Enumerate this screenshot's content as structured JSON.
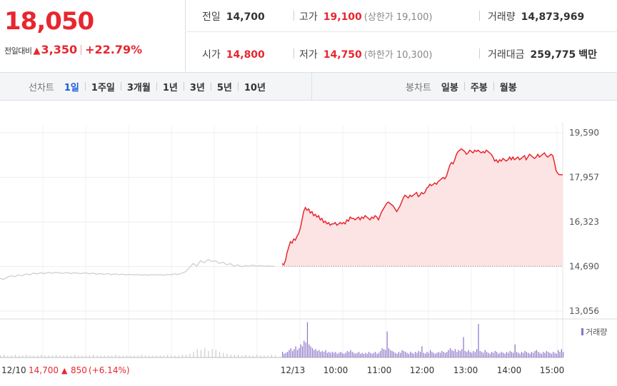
{
  "summary": {
    "price": "18,050",
    "change_label": "전일대비",
    "change_arrow": "▲",
    "change_amount": "3,350",
    "change_rate": "+22.79%"
  },
  "stats": {
    "prev_close": {
      "label": "전일",
      "value": "14,700"
    },
    "high": {
      "label": "고가",
      "value": "19,100",
      "sub": "(상한가 19,100)"
    },
    "volume": {
      "label": "거래량",
      "value": "14,873,969"
    },
    "open": {
      "label": "시가",
      "value": "14,800"
    },
    "low": {
      "label": "저가",
      "value": "14,750",
      "sub": "(하한가 10,300)"
    },
    "trade_value": {
      "label": "거래대금",
      "value": "259,775",
      "unit": "백만"
    }
  },
  "periods": {
    "title": "선차트",
    "options": [
      "1일",
      "1주일",
      "3개월",
      "1년",
      "3년",
      "5년",
      "10년"
    ],
    "active": "1일"
  },
  "candle": {
    "title": "봉차트",
    "options": [
      "일봉",
      "주봉",
      "월봉"
    ]
  },
  "chart_data": {
    "type": "line",
    "y_ticks": [
      "19,590",
      "17,957",
      "16,323",
      "14,690",
      "13,056"
    ],
    "ylim": [
      13056,
      19590
    ],
    "grid": true,
    "prev_close_line": 14700,
    "volume_legend": "거래량",
    "prev_day_label": {
      "date": "12/10",
      "close": "14,700",
      "arrow": "▲",
      "change": "850",
      "rate": "(+6.14%)"
    },
    "x_ticks": [
      "12/13",
      "10:00",
      "11:00",
      "12:00",
      "13:00",
      "14:00",
      "15:00"
    ],
    "colors": {
      "up": "#e8262f",
      "prev": "#cfcfcf",
      "fill": "#fde4e4",
      "volume_today": "#8a72c8",
      "volume_prev": "#cccccc"
    },
    "series": [
      {
        "date": "12/10",
        "values": [
          14250,
          14220,
          14300,
          14350,
          14320,
          14380,
          14350,
          14420,
          14380,
          14450,
          14420,
          14460,
          14430,
          14470,
          14440,
          14480,
          14450,
          14440,
          14470,
          14430,
          14460,
          14440,
          14430,
          14460,
          14420,
          14450,
          14410,
          14430,
          14400,
          14430,
          14390,
          14420,
          14390,
          14410,
          14380,
          14400,
          14380,
          14400,
          14370,
          14390,
          14370,
          14390,
          14380,
          14390,
          14370,
          14400,
          14380,
          14420,
          14400,
          14450,
          14500,
          14650,
          14800,
          14700,
          14900,
          14820,
          14950,
          14870,
          14900,
          14800,
          14850,
          14750,
          14800,
          14700,
          14750,
          14680,
          14720,
          14700,
          14740,
          14700,
          14720,
          14700,
          14710,
          14700,
          14700
        ],
        "volume": [
          2,
          3,
          2,
          2,
          3,
          2,
          2,
          3,
          2,
          2,
          2,
          3,
          2,
          2,
          2,
          3,
          2,
          2,
          2,
          2,
          3,
          2,
          2,
          2,
          2,
          3,
          2,
          2,
          2,
          2,
          2,
          3,
          2,
          2,
          2,
          2,
          2,
          2,
          3,
          2,
          2,
          2,
          2,
          2,
          2,
          3,
          2,
          2,
          2,
          3,
          3,
          4,
          6,
          9,
          8,
          10,
          7,
          9,
          8,
          6,
          5,
          4,
          3,
          3,
          3,
          2,
          3,
          2,
          2,
          3,
          2,
          2,
          2,
          3,
          2
        ]
      },
      {
        "date": "12/13",
        "values": [
          14800,
          14750,
          14900,
          15200,
          15400,
          15600,
          15550,
          15700,
          15650,
          15800,
          15900,
          16100,
          16400,
          16700,
          16850,
          16750,
          16800,
          16650,
          16700,
          16550,
          16600,
          16500,
          16550,
          16400,
          16450,
          16300,
          16350,
          16250,
          16300,
          16200,
          16250,
          16250,
          16300,
          16200,
          16250,
          16300,
          16250,
          16300,
          16250,
          16400,
          16350,
          16500,
          16450,
          16450,
          16400,
          16450,
          16500,
          16400,
          16500,
          16450,
          16550,
          16500,
          16450,
          16400,
          16500,
          16450,
          16550,
          16500,
          16400,
          16550,
          16700,
          16800,
          16900,
          17000,
          17050,
          17000,
          16950,
          16900,
          16800,
          16700,
          16800,
          16900,
          17050,
          17200,
          17300,
          17250,
          17200,
          17300,
          17250,
          17300,
          17350,
          17400,
          17250,
          17300,
          17400,
          17350,
          17400,
          17550,
          17600,
          17700,
          17650,
          17700,
          17750,
          17700,
          17800,
          17850,
          17900,
          17950,
          17900,
          18000,
          18200,
          18400,
          18500,
          18450,
          18600,
          18800,
          18900,
          18950,
          19000,
          18950,
          18900,
          18800,
          18850,
          18950,
          18900,
          18850,
          18950,
          18900,
          18950,
          18900,
          18850,
          18900,
          18850,
          18950,
          18900,
          18850,
          18800,
          18700,
          18550,
          18600,
          18500,
          18600,
          18550,
          18650,
          18600,
          18550,
          18600,
          18700,
          18600,
          18700,
          18600,
          18650,
          18700,
          18600,
          18650,
          18700,
          18750,
          18600,
          18700,
          18800,
          18750,
          18700,
          18650,
          18700,
          18800,
          18700,
          18750,
          18800,
          18850,
          18750,
          18700,
          18750,
          18800,
          18750,
          18500,
          18200,
          18100,
          18050,
          18050,
          18050
        ],
        "volume": [
          6,
          4,
          5,
          6,
          8,
          10,
          7,
          9,
          12,
          8,
          10,
          14,
          12,
          18,
          16,
          38,
          14,
          12,
          10,
          8,
          9,
          7,
          8,
          6,
          7,
          6,
          8,
          5,
          6,
          5,
          6,
          5,
          6,
          4,
          5,
          6,
          5,
          4,
          5,
          7,
          6,
          8,
          6,
          5,
          4,
          5,
          6,
          4,
          5,
          4,
          5,
          4,
          6,
          5,
          4,
          5,
          6,
          4,
          5,
          7,
          10,
          9,
          8,
          28,
          10,
          8,
          7,
          6,
          5,
          4,
          6,
          5,
          8,
          7,
          6,
          5,
          4,
          6,
          5,
          4,
          6,
          5,
          7,
          6,
          12,
          5,
          4,
          6,
          5,
          8,
          6,
          5,
          4,
          5,
          6,
          5,
          7,
          6,
          5,
          6,
          8,
          10,
          8,
          7,
          9,
          6,
          8,
          7,
          9,
          22,
          7,
          6,
          8,
          6,
          5,
          7,
          6,
          9,
          36,
          7,
          6,
          5,
          8,
          6,
          5,
          4,
          6,
          5,
          7,
          6,
          4,
          5,
          6,
          5,
          4,
          6,
          5,
          7,
          6,
          5,
          14,
          6,
          5,
          4,
          6,
          5,
          7,
          6,
          5,
          4,
          6,
          5,
          7,
          8,
          6,
          5,
          4,
          6,
          5,
          7,
          6,
          5,
          4,
          6,
          5,
          4,
          8,
          6,
          9,
          6
        ]
      }
    ]
  }
}
